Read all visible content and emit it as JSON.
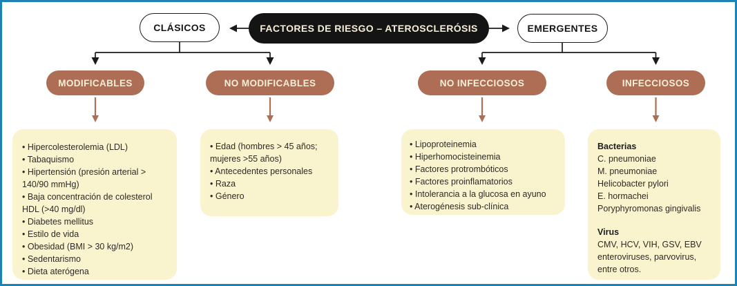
{
  "palette": {
    "frame_border": "#1f82b4",
    "root_pill_bg": "#141414",
    "root_pill_text": "#f6efd5",
    "branch_pill_bg": "#ffffff",
    "branch_pill_border": "#1a1a1a",
    "category_pill_bg": "#ad6e55",
    "category_pill_text": "#f7eed6",
    "list_box_bg": "#f9f3ce",
    "connector_black": "#1a1a1a",
    "connector_brown": "#ad6e55",
    "body_text": "#2e2a26"
  },
  "root": {
    "label": "FACTORES DE RIESGO – ATEROSCLERÓSIS"
  },
  "branches": [
    {
      "label": "CLÁSICOS",
      "children": [
        {
          "label": "MODIFICABLES",
          "items": [
            "• Hipercolesterolemia (LDL)",
            "• Tabaquismo",
            "• Hipertensión (presión arterial > 140/90 mmHg)",
            "• Baja concentración de colesterol HDL (>40 mg/dl)",
            "• Diabetes mellitus",
            "• Estilo de vida",
            "• Obesidad (BMI > 30 kg/m2)",
            "• Sedentarismo",
            "• Dieta aterógena"
          ]
        },
        {
          "label": "NO MODIFICABLES",
          "items": [
            "• Edad (hombres > 45 años; mujeres >55 años)",
            "• Antecedentes personales",
            "• Raza",
            "• Género"
          ]
        }
      ]
    },
    {
      "label": "EMERGENTES",
      "children": [
        {
          "label": "NO INFECCIOSOS",
          "items": [
            "• Lipoproteinemia",
            "• Hiperhomocisteinemia",
            "• Factores protrombóticos",
            "• Factores proinflamatorios",
            "• Intolerancia a la glucosa en ayuno",
            "• Aterogénesis sub-clínica"
          ]
        },
        {
          "label": "INFECCIOSOS",
          "sections": [
            {
              "heading": "Bacterias",
              "lines": [
                "C. pneumoniae",
                "M. pneumoniae",
                "Helicobacter pylori",
                "E. hormachei",
                "Poryphyromonas gingivalis"
              ]
            },
            {
              "heading": "Virus",
              "lines": [
                "CMV, HCV, VIH, GSV, EBV enteroviruses, parvovirus, entre otros."
              ]
            }
          ]
        }
      ]
    }
  ]
}
